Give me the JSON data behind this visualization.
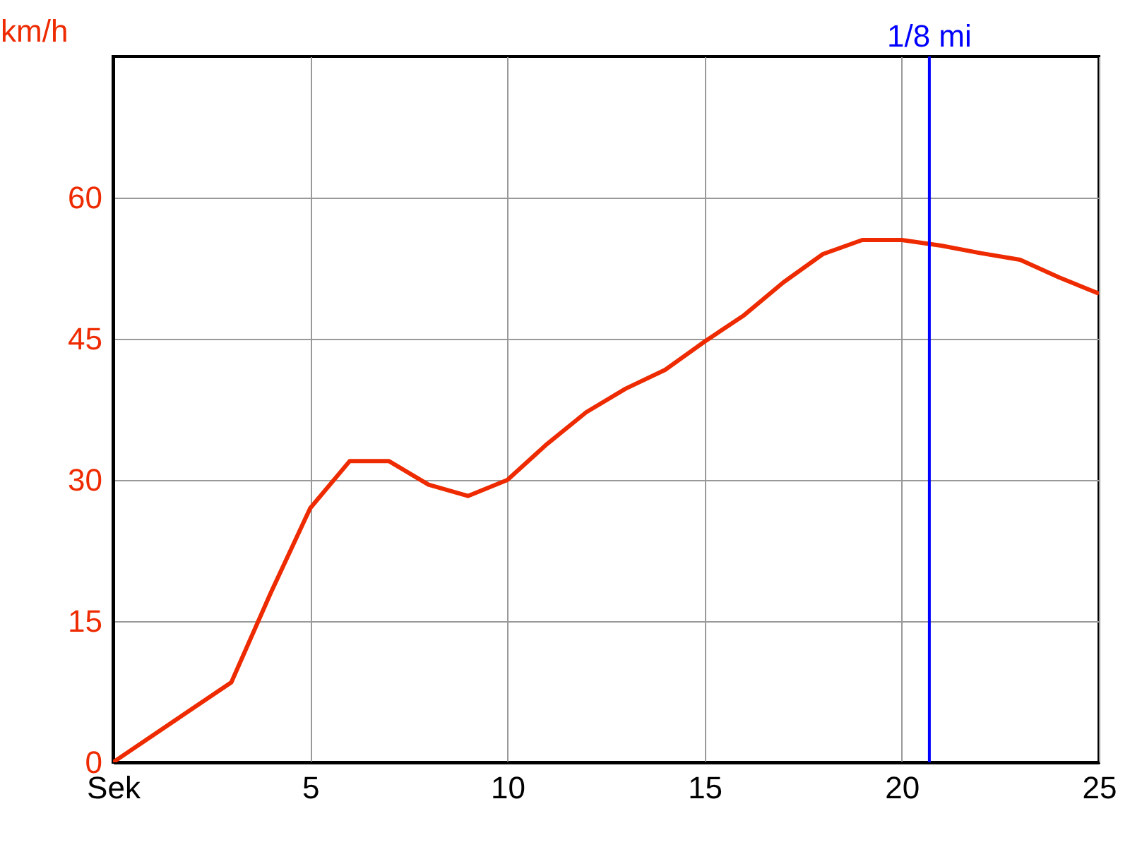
{
  "chart_data": {
    "type": "line",
    "ylabel": "km/h",
    "x": [
      0,
      3,
      4,
      5,
      6,
      7,
      8,
      9,
      10,
      11,
      12,
      13,
      14,
      15,
      16,
      17,
      18,
      19,
      20,
      21,
      22,
      23,
      24,
      25
    ],
    "series": [
      {
        "color": "#ee2a00",
        "values": [
          0,
          8.5,
          18,
          27,
          32,
          32,
          29.5,
          28.3,
          30,
          33.8,
          37.2,
          39.7,
          41.7,
          44.7,
          47.5,
          51,
          54,
          55.5,
          55.5,
          54.9,
          54.1,
          53.4,
          51.5,
          49.8
        ]
      }
    ],
    "xlim": [
      0,
      25
    ],
    "xticks": [
      {
        "value": 0,
        "label": "Sek"
      },
      5,
      10,
      15,
      20,
      25
    ],
    "ylim": [
      0,
      75
    ],
    "yticks": [
      0,
      15,
      30,
      45,
      60
    ],
    "ref_lines": [
      {
        "axis": "x",
        "value": 20.7,
        "label": "1/8 mi",
        "color": "#0000ff"
      }
    ],
    "grid": true,
    "marker": "none",
    "line_style": "solid"
  }
}
